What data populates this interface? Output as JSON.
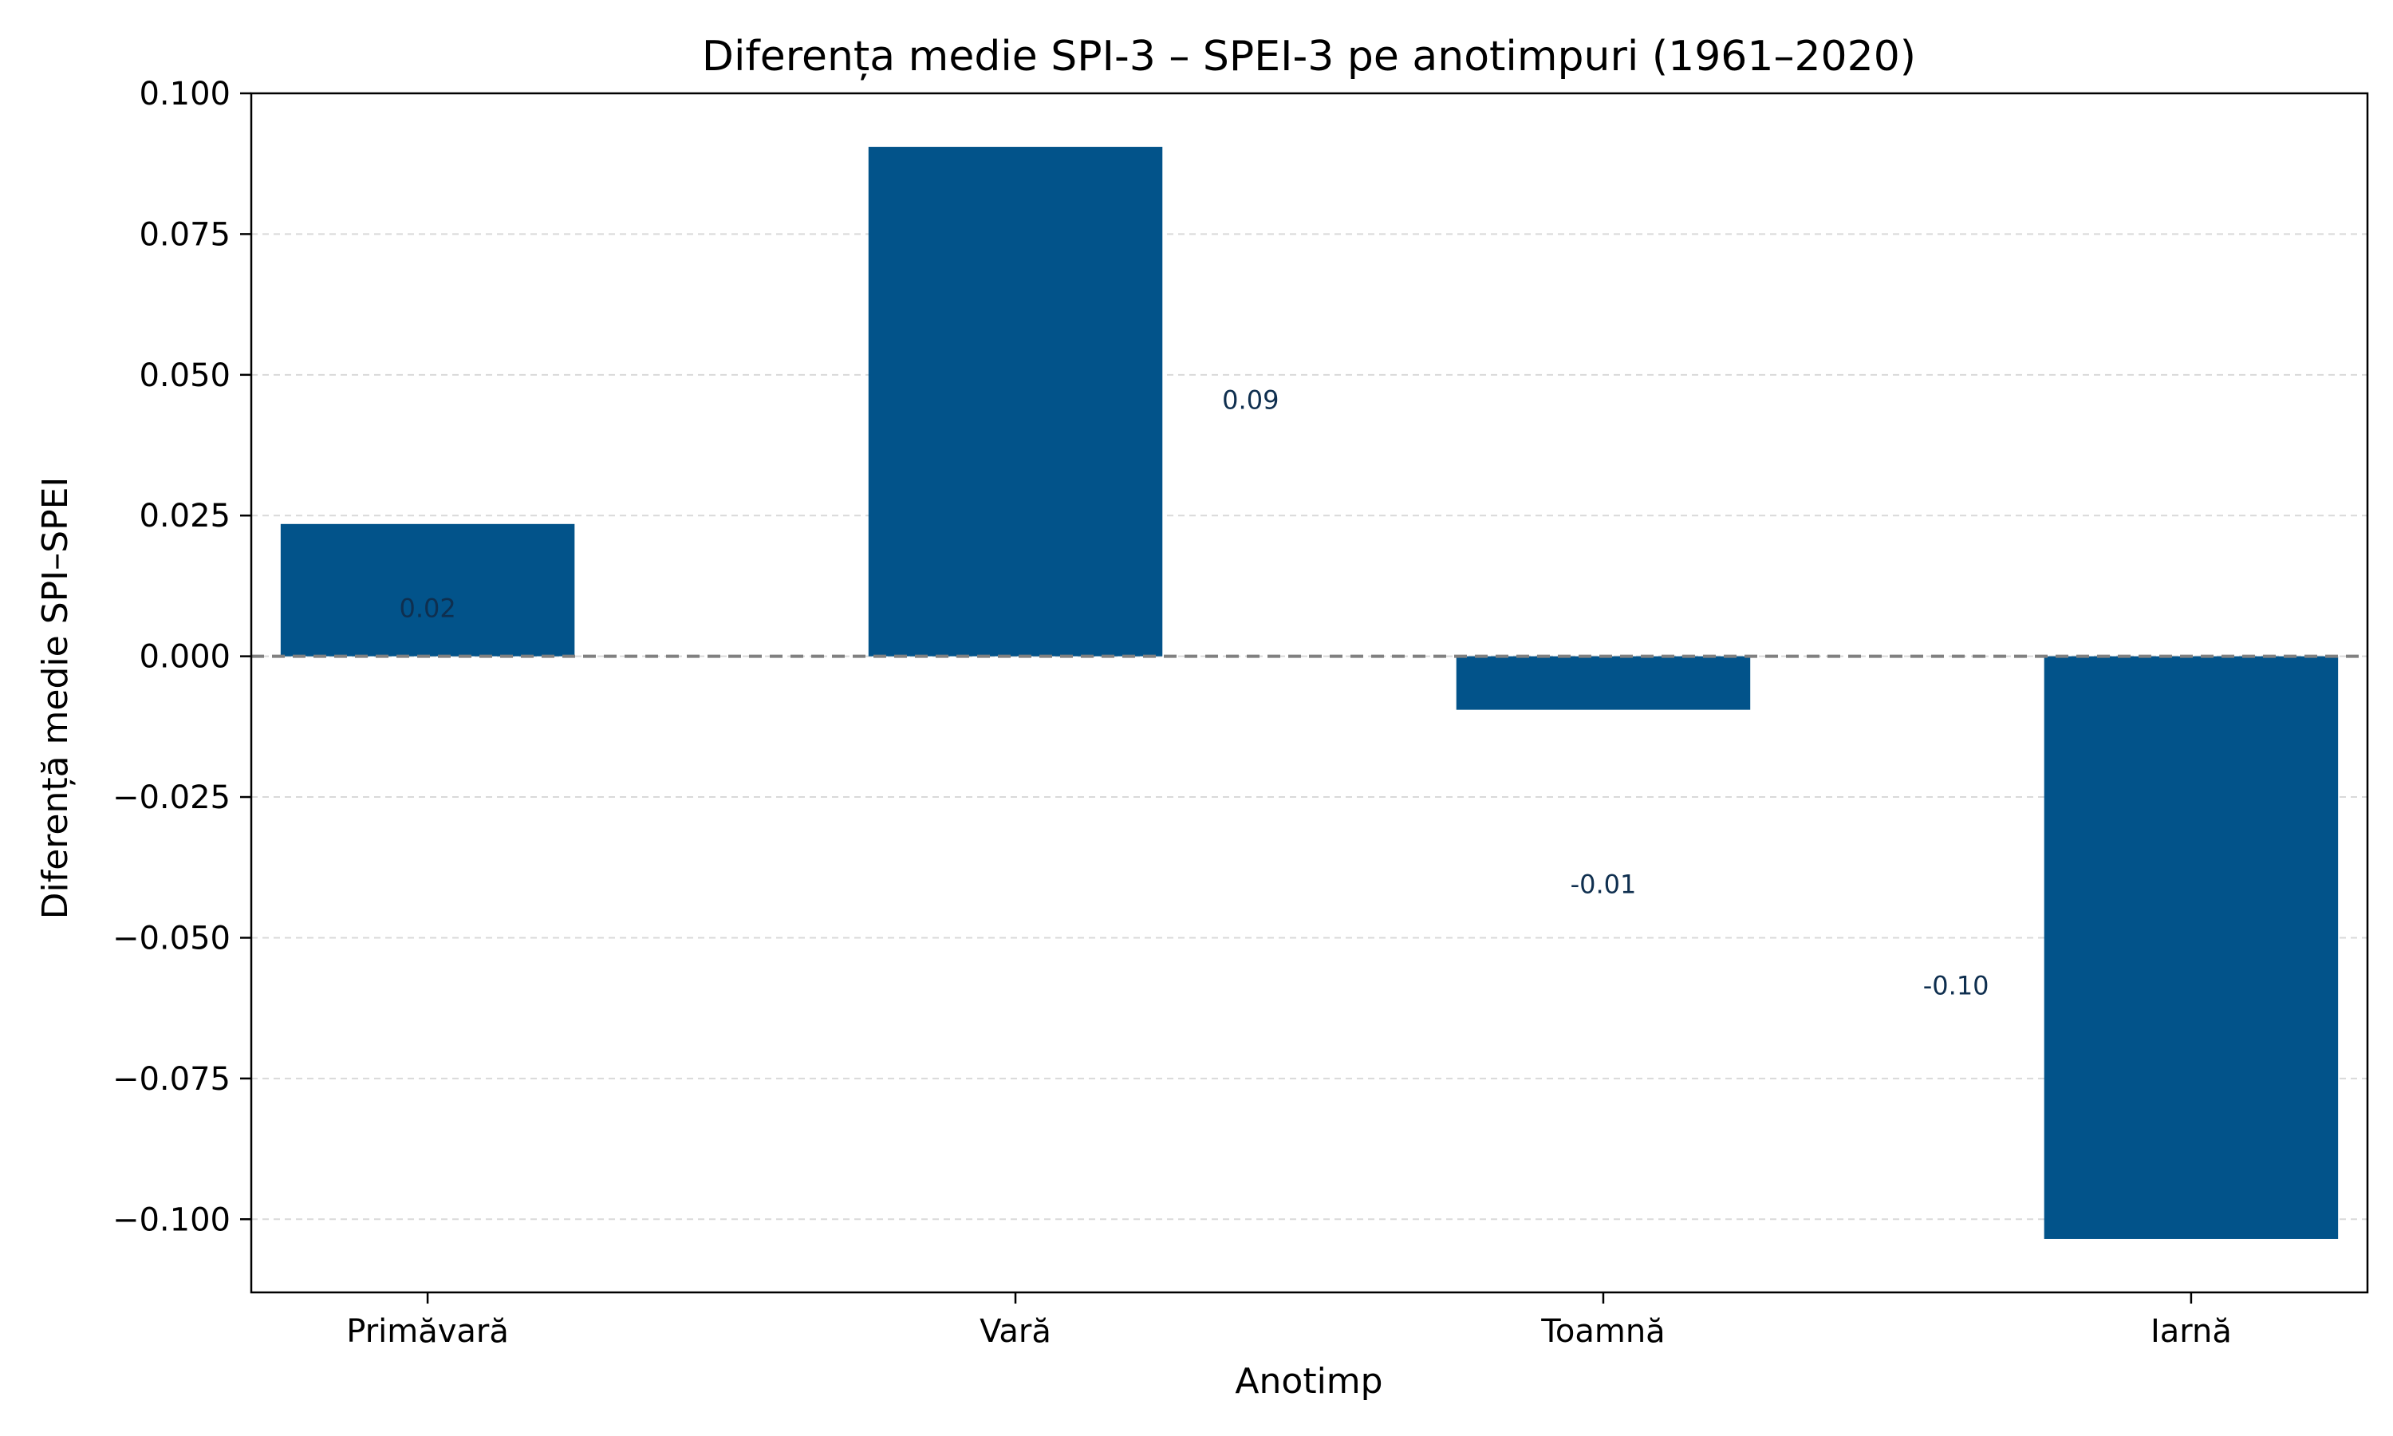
{
  "chart_data": {
    "type": "bar",
    "title": "Diferența medie SPI-3 – SPEI-3 pe anotimpuri (1961–2020)",
    "xlabel": "Anotimp",
    "ylabel": "Diferență medie SPI–SPEI",
    "categories": [
      "Primăvară",
      "Vară",
      "Toamnă",
      "Iarnă"
    ],
    "values": [
      0.0235,
      0.0905,
      -0.0095,
      -0.1035
    ],
    "data_labels": [
      "0.02",
      "0.09",
      "-0.01",
      "-0.10"
    ],
    "ylim": [
      -0.113,
      0.1
    ],
    "yticks": [
      -0.1,
      -0.075,
      -0.05,
      -0.025,
      0.0,
      0.025,
      0.05,
      0.075,
      0.1
    ],
    "ytick_labels": [
      "−0.100",
      "−0.075",
      "−0.050",
      "−0.025",
      "0.000",
      "0.025",
      "0.050",
      "0.075",
      "0.100"
    ],
    "reference_line": 0,
    "grid": "horizontal dashed",
    "bar_color": "#02538a",
    "reference_line_color": "#808080"
  }
}
